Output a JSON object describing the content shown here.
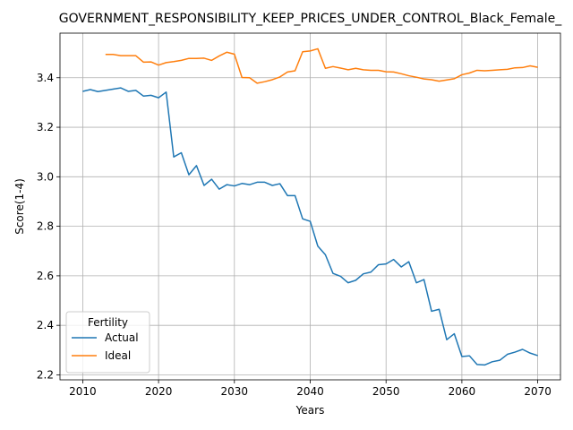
{
  "chart_data": {
    "type": "line",
    "title": "GOVERNMENT_RESPONSIBILITY_KEEP_PRICES_UNDER_CONTROL_Black_Female_",
    "xlabel": "Years",
    "ylabel": "Score(1-4)",
    "xlim": [
      2007,
      2073
    ],
    "ylim": [
      2.18,
      3.58
    ],
    "x_ticks": [
      2010,
      2020,
      2030,
      2040,
      2050,
      2060,
      2070
    ],
    "y_ticks": [
      2.2,
      2.4,
      2.6,
      2.8,
      3.0,
      3.2,
      3.4
    ],
    "x_tick_labels": [
      "2010",
      "2020",
      "2030",
      "2040",
      "2050",
      "2060",
      "2070"
    ],
    "y_tick_labels": [
      "2.2",
      "2.4",
      "2.6",
      "2.8",
      "3.0",
      "3.2",
      "3.4"
    ],
    "grid": true,
    "legend": {
      "title": "Fertility",
      "placement": "lower-left"
    },
    "series": [
      {
        "name": "Actual",
        "color": "#1f77b4",
        "x": [
          2010,
          2011,
          2012,
          2013,
          2014,
          2015,
          2016,
          2017,
          2018,
          2019,
          2020,
          2021,
          2022,
          2023,
          2024,
          2025,
          2026,
          2027,
          2028,
          2029,
          2030,
          2031,
          2032,
          2033,
          2034,
          2035,
          2036,
          2037,
          2038,
          2039,
          2040,
          2041,
          2042,
          2043,
          2044,
          2045,
          2046,
          2047,
          2048,
          2049,
          2050,
          2051,
          2052,
          2053,
          2054,
          2055,
          2056,
          2057,
          2058,
          2059,
          2060,
          2061,
          2062,
          2063,
          2064,
          2065,
          2066,
          2067,
          2068,
          2069,
          2070
        ],
        "values": [
          3.345,
          3.352,
          3.344,
          3.349,
          3.354,
          3.359,
          3.345,
          3.349,
          3.326,
          3.329,
          3.319,
          3.342,
          3.08,
          3.097,
          3.008,
          3.045,
          2.965,
          2.99,
          2.95,
          2.968,
          2.963,
          2.973,
          2.968,
          2.978,
          2.978,
          2.965,
          2.972,
          2.924,
          2.924,
          2.83,
          2.82,
          2.72,
          2.685,
          2.61,
          2.598,
          2.572,
          2.582,
          2.608,
          2.615,
          2.645,
          2.648,
          2.666,
          2.636,
          2.657,
          2.572,
          2.585,
          2.457,
          2.465,
          2.342,
          2.366,
          2.274,
          2.277,
          2.242,
          2.24,
          2.253,
          2.259,
          2.283,
          2.292,
          2.303,
          2.288,
          2.278
        ]
      },
      {
        "name": "Ideal",
        "color": "#ff7f0e",
        "x": [
          2013,
          2014,
          2015,
          2016,
          2017,
          2018,
          2019,
          2020,
          2021,
          2022,
          2023,
          2024,
          2025,
          2026,
          2027,
          2028,
          2029,
          2030,
          2031,
          2032,
          2033,
          2034,
          2035,
          2036,
          2037,
          2038,
          2039,
          2040,
          2041,
          2042,
          2043,
          2044,
          2045,
          2046,
          2047,
          2048,
          2049,
          2050,
          2051,
          2052,
          2053,
          2054,
          2055,
          2056,
          2057,
          2058,
          2059,
          2060,
          2061,
          2062,
          2063,
          2064,
          2065,
          2066,
          2067,
          2068,
          2069,
          2070
        ],
        "values": [
          3.494,
          3.494,
          3.489,
          3.489,
          3.489,
          3.463,
          3.464,
          3.451,
          3.461,
          3.465,
          3.47,
          3.478,
          3.478,
          3.479,
          3.47,
          3.488,
          3.503,
          3.495,
          3.401,
          3.4,
          3.378,
          3.384,
          3.392,
          3.403,
          3.423,
          3.428,
          3.505,
          3.508,
          3.517,
          3.438,
          3.445,
          3.439,
          3.432,
          3.438,
          3.432,
          3.43,
          3.43,
          3.424,
          3.423,
          3.416,
          3.408,
          3.402,
          3.395,
          3.392,
          3.386,
          3.391,
          3.396,
          3.412,
          3.419,
          3.43,
          3.428,
          3.43,
          3.432,
          3.434,
          3.44,
          3.441,
          3.448,
          3.442
        ]
      }
    ]
  }
}
